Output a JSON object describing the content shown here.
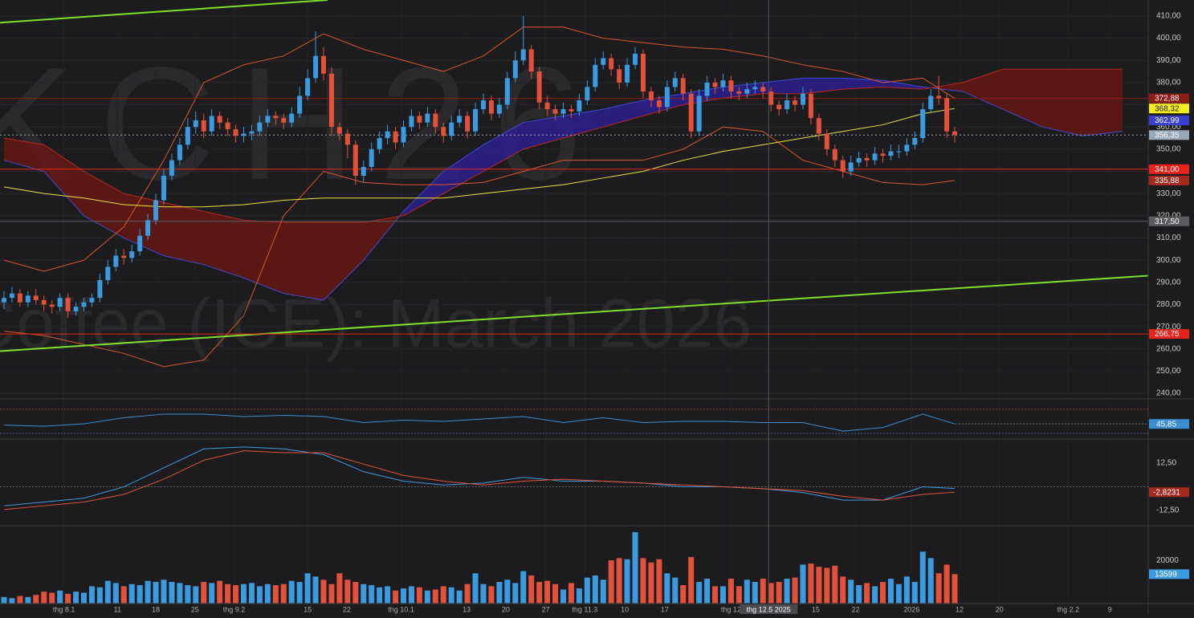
{
  "chart_data": {
    "type": "candlestick",
    "symbol": "KCH26",
    "title": "Coffee (ICE): March 2026",
    "ylim": [
      237.5,
      417.2
    ],
    "yticks": [
      {
        "value": 240,
        "label": "240,00"
      },
      {
        "value": 250,
        "label": "250,00"
      },
      {
        "value": 260,
        "label": "260,00"
      },
      {
        "value": 270,
        "label": "270,00"
      },
      {
        "value": 280,
        "label": "280,00"
      },
      {
        "value": 290,
        "label": "290,00"
      },
      {
        "value": 300,
        "label": "300,00"
      },
      {
        "value": 310,
        "label": "310,00"
      },
      {
        "value": 320,
        "label": "320,00"
      },
      {
        "value": 330,
        "label": "330,00"
      },
      {
        "value": 340,
        "label": "340,00"
      },
      {
        "value": 350,
        "label": "350,00"
      },
      {
        "value": 360,
        "label": "360,00"
      },
      {
        "value": 370,
        "label": "370,00"
      },
      {
        "value": 380,
        "label": "380,00"
      },
      {
        "value": 390,
        "label": "390,00"
      },
      {
        "value": 400,
        "label": "400,00"
      },
      {
        "value": 410,
        "label": "410,00"
      }
    ],
    "xticks": [
      {
        "value": 7.5,
        "label": "thg 8.1"
      },
      {
        "value": 14.2,
        "label": "11"
      },
      {
        "value": 19,
        "label": "18"
      },
      {
        "value": 23.9,
        "label": "25"
      },
      {
        "value": 28.8,
        "label": "thg 9.2"
      },
      {
        "value": 38,
        "label": "15"
      },
      {
        "value": 42.9,
        "label": "22"
      },
      {
        "value": 49.7,
        "label": "thg 10.1"
      },
      {
        "value": 57.9,
        "label": "13"
      },
      {
        "value": 62.8,
        "label": "20"
      },
      {
        "value": 67.8,
        "label": "27"
      },
      {
        "value": 72.7,
        "label": "thg 11.3"
      },
      {
        "value": 77.7,
        "label": "10"
      },
      {
        "value": 82.7,
        "label": "17"
      },
      {
        "value": 91,
        "label": "thg 12"
      },
      {
        "value": 95.7,
        "label": "thg 12.5 2025"
      },
      {
        "value": 101.6,
        "label": "15"
      },
      {
        "value": 106.6,
        "label": "22"
      },
      {
        "value": 113.6,
        "label": "2026"
      },
      {
        "value": 119.6,
        "label": "12"
      },
      {
        "value": 124.6,
        "label": "20"
      },
      {
        "value": 133.2,
        "label": "thg 2.2"
      },
      {
        "value": 138.4,
        "label": "9"
      }
    ],
    "crosshair": 95.7,
    "grid": true,
    "up_color": "#3b9be0",
    "down_color": "#e4513a",
    "candles": [
      [
        281,
        286,
        278,
        283
      ],
      [
        283,
        288,
        281,
        285
      ],
      [
        285,
        287,
        279,
        281
      ],
      [
        281,
        286,
        279,
        284
      ],
      [
        284,
        287,
        280,
        282
      ],
      [
        282,
        284,
        277,
        280
      ],
      [
        280,
        282,
        276,
        279
      ],
      [
        279,
        285,
        277,
        283
      ],
      [
        283,
        285,
        274,
        277
      ],
      [
        277,
        281,
        275,
        279
      ],
      [
        279,
        283,
        277,
        281
      ],
      [
        281,
        285,
        279,
        283
      ],
      [
        283,
        294,
        281,
        291
      ],
      [
        291,
        300,
        289,
        297
      ],
      [
        297,
        305,
        295,
        302
      ],
      [
        302,
        305,
        298,
        301
      ],
      [
        301,
        307,
        299,
        304
      ],
      [
        304,
        314,
        302,
        311
      ],
      [
        311,
        321,
        309,
        318
      ],
      [
        318,
        330,
        316,
        327
      ],
      [
        327,
        341,
        325,
        338
      ],
      [
        338,
        348,
        336,
        345
      ],
      [
        345,
        355,
        343,
        352
      ],
      [
        352,
        364,
        350,
        360
      ],
      [
        360,
        367,
        357,
        363
      ],
      [
        363,
        366,
        355,
        358
      ],
      [
        358,
        368,
        356,
        365
      ],
      [
        365,
        367,
        359,
        362
      ],
      [
        362,
        364,
        356,
        359
      ],
      [
        359,
        361,
        353,
        356
      ],
      [
        356,
        360,
        353,
        357
      ],
      [
        357,
        361,
        354,
        358
      ],
      [
        358,
        365,
        356,
        362
      ],
      [
        362,
        368,
        360,
        365
      ],
      [
        365,
        367,
        361,
        364
      ],
      [
        364,
        366,
        359,
        362
      ],
      [
        362,
        369,
        360,
        366
      ],
      [
        366,
        378,
        364,
        374
      ],
      [
        374,
        386,
        372,
        382
      ],
      [
        382,
        403,
        380,
        392
      ],
      [
        392,
        396,
        381,
        384
      ],
      [
        384,
        387,
        356,
        360
      ],
      [
        360,
        362,
        354,
        357
      ],
      [
        357,
        359,
        346,
        352
      ],
      [
        352,
        354,
        334,
        338
      ],
      [
        338,
        345,
        335,
        342
      ],
      [
        342,
        353,
        340,
        350
      ],
      [
        350,
        358,
        348,
        355
      ],
      [
        355,
        361,
        352,
        358
      ],
      [
        358,
        360,
        350,
        353
      ],
      [
        353,
        363,
        351,
        360
      ],
      [
        360,
        368,
        358,
        365
      ],
      [
        365,
        367,
        359,
        362
      ],
      [
        362,
        369,
        360,
        366
      ],
      [
        366,
        368,
        357,
        360
      ],
      [
        360,
        362,
        353,
        356
      ],
      [
        356,
        365,
        354,
        362
      ],
      [
        362,
        368,
        360,
        365
      ],
      [
        365,
        367,
        355,
        358
      ],
      [
        358,
        371,
        356,
        368
      ],
      [
        368,
        375,
        366,
        372
      ],
      [
        372,
        374,
        363,
        366
      ],
      [
        366,
        373,
        364,
        370
      ],
      [
        370,
        385,
        368,
        382
      ],
      [
        382,
        394,
        380,
        390
      ],
      [
        390,
        410,
        388,
        395
      ],
      [
        395,
        397,
        382,
        385
      ],
      [
        385,
        387,
        368,
        371
      ],
      [
        371,
        374,
        365,
        368
      ],
      [
        368,
        370,
        363,
        366
      ],
      [
        366,
        371,
        364,
        368
      ],
      [
        368,
        370,
        364,
        367
      ],
      [
        367,
        375,
        365,
        372
      ],
      [
        372,
        381,
        370,
        378
      ],
      [
        378,
        391,
        376,
        388
      ],
      [
        388,
        394,
        386,
        391
      ],
      [
        391,
        393,
        383,
        386
      ],
      [
        386,
        388,
        377,
        380
      ],
      [
        380,
        391,
        378,
        388
      ],
      [
        388,
        396,
        386,
        393
      ],
      [
        393,
        395,
        373,
        376
      ],
      [
        376,
        378,
        369,
        372
      ],
      [
        372,
        374,
        366,
        369
      ],
      [
        369,
        381,
        367,
        378
      ],
      [
        378,
        385,
        376,
        382
      ],
      [
        382,
        384,
        372,
        375
      ],
      [
        375,
        377,
        355,
        358
      ],
      [
        358,
        377,
        356,
        374
      ],
      [
        374,
        383,
        372,
        380
      ],
      [
        380,
        382,
        375,
        378
      ],
      [
        378,
        384,
        376,
        381
      ],
      [
        381,
        383,
        373,
        376
      ],
      [
        376,
        378,
        372,
        375
      ],
      [
        375,
        380,
        373,
        377
      ],
      [
        377,
        381,
        375,
        378
      ],
      [
        378,
        380,
        373,
        376
      ],
      [
        376,
        378,
        367,
        370
      ],
      [
        370,
        372,
        365,
        368
      ],
      [
        368,
        375,
        366,
        372
      ],
      [
        372,
        374,
        367,
        370
      ],
      [
        370,
        378,
        368,
        375
      ],
      [
        375,
        377,
        361,
        364
      ],
      [
        364,
        366,
        354,
        357
      ],
      [
        357,
        359,
        347,
        350
      ],
      [
        350,
        352,
        342,
        345
      ],
      [
        345,
        347,
        337,
        340
      ],
      [
        340,
        347,
        338,
        344
      ],
      [
        344,
        349,
        342,
        346
      ],
      [
        346,
        348,
        342,
        345
      ],
      [
        345,
        351,
        343,
        348
      ],
      [
        348,
        350,
        344,
        347
      ],
      [
        347,
        352,
        345,
        349
      ],
      [
        349,
        352,
        346,
        349
      ],
      [
        349,
        355,
        347,
        352
      ],
      [
        352,
        358,
        350,
        355
      ],
      [
        355,
        371,
        353,
        368
      ],
      [
        368,
        377,
        366,
        374
      ],
      [
        374,
        383,
        370,
        373
      ],
      [
        373,
        375,
        355,
        358
      ],
      [
        358,
        360,
        353,
        356.35
      ]
    ],
    "sample_x": [
      0,
      5,
      10,
      15,
      20,
      25,
      30,
      35,
      40,
      45,
      50,
      55,
      60,
      65,
      70,
      75,
      80,
      85,
      90,
      95,
      100,
      105,
      110,
      115,
      119
    ],
    "lines": [
      {
        "color": "#d9572e",
        "values": [
          300,
          295,
          300,
          315,
          345,
          380,
          388,
          392,
          402,
          395,
          390,
          385,
          392,
          405,
          405,
          400,
          398,
          396,
          395,
          392,
          388,
          385,
          380,
          382,
          372.88
        ]
      },
      {
        "color": "#d9572e",
        "values": [
          268,
          266,
          262,
          258,
          252,
          255,
          275,
          320,
          340,
          335,
          334,
          334,
          335,
          340,
          345,
          345,
          345,
          350,
          360,
          358,
          345,
          340,
          335,
          334,
          335.88
        ]
      },
      {
        "color": "#e8e23a",
        "values": [
          333,
          330,
          328,
          325,
          324,
          324,
          325,
          327,
          328,
          328,
          328,
          328,
          330,
          332,
          334,
          337,
          340,
          345,
          349,
          352,
          355,
          358,
          361,
          366,
          368.32
        ]
      }
    ],
    "cloud": {
      "x": [
        0,
        5,
        10,
        15,
        20,
        25,
        30,
        35,
        40,
        45,
        50,
        55,
        60,
        65,
        70,
        75,
        80,
        85,
        90,
        95,
        100,
        105,
        110,
        115,
        120,
        125,
        130,
        135,
        140
      ],
      "span_a": [
        345,
        340,
        320,
        310,
        302,
        298,
        292,
        285,
        282,
        300,
        322,
        340,
        352,
        362,
        365,
        368,
        372,
        375,
        378,
        380,
        382,
        382,
        381,
        378,
        376,
        368,
        360,
        356,
        358
      ],
      "span_b": [
        355,
        352,
        340,
        330,
        326,
        322,
        318,
        317,
        317,
        317,
        320,
        330,
        340,
        350,
        355,
        360,
        365,
        370,
        373,
        375,
        375,
        377,
        378,
        377,
        380,
        386,
        386,
        386,
        386
      ],
      "a_color": "#3f4ad6",
      "b_color": "#b8281c",
      "bull_color": "#2d1f9c",
      "bear_color": "#6e1712"
    },
    "trendlines": [
      {
        "x": [
          -0.5,
          143.2
        ],
        "values": [
          259,
          293
        ],
        "color": "#7ee02c"
      },
      {
        "x": [
          -0.5,
          40.5
        ],
        "values": [
          407,
          417.2
        ],
        "color": "#7ee02c"
      }
    ],
    "price_tags": [
      {
        "value": 372.88,
        "label": "372,88",
        "color": "#8e1d15",
        "line": true
      },
      {
        "value": 368.32,
        "label": "368,32",
        "color": "#f2ec1c"
      },
      {
        "value": 362.99,
        "label": "362,99",
        "color": "#3b3fd0"
      },
      {
        "value": 356.35,
        "label": "356,35",
        "color": "#9aa7b5",
        "dotted": true
      },
      {
        "value": 341,
        "label": "341,00",
        "color": "#e8231c",
        "line": true
      },
      {
        "value": 335.88,
        "label": "335,88",
        "color": "#a52a1e"
      },
      {
        "value": 317.5,
        "label": "317,50",
        "color": "#5b5b60",
        "line": true
      },
      {
        "value": 266.75,
        "label": "266,75",
        "color": "#e8231c",
        "line": true
      }
    ],
    "rsi": {
      "ylim": [
        21,
        87
      ],
      "levels": [
        70,
        30
      ],
      "color": "#3b8fd0",
      "values": [
        44,
        42,
        46,
        56,
        62,
        62,
        58,
        60,
        58,
        48,
        52,
        50,
        54,
        58,
        48,
        56,
        48,
        50,
        50,
        48,
        48,
        34,
        40,
        62,
        45.85
      ],
      "value_label": "45,85"
    },
    "macd": {
      "ylim": [
        -20.5,
        25.2
      ],
      "yticks": [
        {
          "value": 12.5,
          "label": "12,50"
        },
        {
          "value": 0,
          "label": "0"
        },
        {
          "value": -12.5,
          "label": "-12,50"
        }
      ],
      "macd": [
        -10,
        -8,
        -6,
        0,
        10,
        20,
        21,
        20,
        17,
        8,
        3,
        1,
        2,
        5,
        3,
        3,
        2,
        0,
        0,
        -1,
        -3,
        -7,
        -7,
        0,
        -0.9
      ],
      "signal": [
        -12,
        -10,
        -8,
        -4,
        4,
        14,
        19,
        18,
        18,
        12,
        6,
        3,
        1,
        3,
        4,
        3,
        2,
        1,
        0,
        -1,
        -2,
        -5,
        -7,
        -4,
        -2.8231
      ],
      "signal_label": "-2,8231",
      "macd_color": "#3b9be0",
      "signal_color": "#e4513a"
    },
    "volume": {
      "ylim": [
        0,
        36000
      ],
      "yticks": [
        20000
      ],
      "values": [
        3000,
        2500,
        3500,
        3000,
        4000,
        5500,
        5000,
        6000,
        4500,
        5500,
        5000,
        8000,
        7500,
        10500,
        9500,
        8000,
        9000,
        8500,
        10500,
        10000,
        11000,
        10000,
        9500,
        8500,
        8000,
        10000,
        9500,
        10500,
        9000,
        8500,
        9000,
        9500,
        8000,
        9000,
        8500,
        9000,
        10500,
        10000,
        14000,
        12500,
        11000,
        9000,
        14000,
        11000,
        10000,
        9000,
        8500,
        7500,
        8000,
        6000,
        7000,
        8000,
        7500,
        6000,
        6500,
        8000,
        7500,
        6000,
        9000,
        14000,
        9000,
        8000,
        10000,
        11000,
        9500,
        15000,
        13000,
        10000,
        10500,
        9000,
        6500,
        9500,
        7000,
        12000,
        13000,
        11000,
        20000,
        21000,
        20500,
        33000,
        21000,
        19000,
        20500,
        14000,
        12000,
        8500,
        21500,
        10000,
        11500,
        8000,
        8000,
        11500,
        8000,
        11000,
        10000,
        11500,
        9500,
        10000,
        11500,
        12000,
        18000,
        18500,
        17000,
        16500,
        17500,
        12500,
        11000,
        8500,
        9500,
        8000,
        10000,
        11500,
        9000,
        12500,
        10000,
        24000,
        21000,
        14000,
        18000,
        13599
      ]
    }
  }
}
